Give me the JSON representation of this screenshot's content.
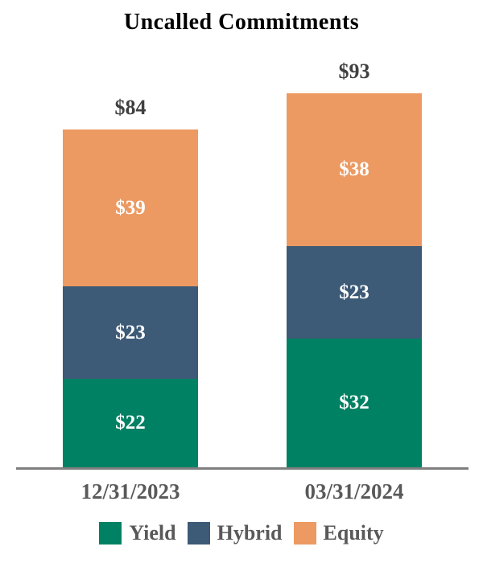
{
  "chart_data": {
    "type": "bar",
    "stacked": true,
    "title": "Uncalled Commitments",
    "unit": "$",
    "categories": [
      "12/31/2023",
      "03/31/2024"
    ],
    "series": [
      {
        "name": "Yield",
        "color": "#008163",
        "values": [
          22,
          32
        ],
        "labels": [
          "$22",
          "$32"
        ]
      },
      {
        "name": "Hybrid",
        "color": "#3D5A77",
        "values": [
          23,
          23
        ],
        "labels": [
          "$23",
          "$23"
        ]
      },
      {
        "name": "Equity",
        "color": "#EC9A61",
        "values": [
          39,
          38
        ],
        "labels": [
          "$39",
          "$38"
        ]
      }
    ],
    "totals": [
      84,
      93
    ],
    "total_labels": [
      "$84",
      "$93"
    ],
    "layout_hints": {
      "legend_position": "bottom",
      "grid": "off",
      "y_axis": "hidden",
      "value_labels": "inside-white",
      "total_labels": "above-bars"
    },
    "colors": {
      "axis_line": "#7f7f7f",
      "category_label": "#595959",
      "total_label": "#404040",
      "title": "#000000",
      "segment_label": "#ffffff",
      "background": "#ffffff"
    }
  }
}
